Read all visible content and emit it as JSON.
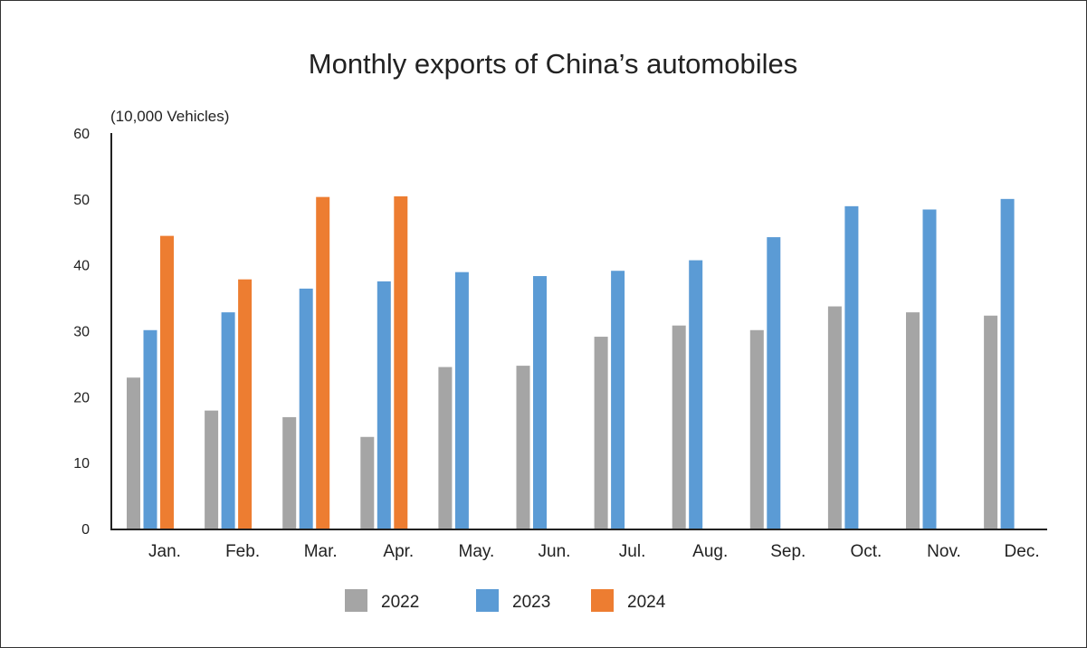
{
  "chart_data": {
    "type": "bar",
    "title": "Monthly exports of China’s automobiles",
    "ylabel": "(10,000 Vehicles)",
    "xlabel": "",
    "ylim": [
      0,
      60
    ],
    "yticks": [
      0,
      10,
      20,
      30,
      40,
      50,
      60
    ],
    "grid": false,
    "legend_placement": "bottom",
    "categories": [
      "Jan.",
      "Feb.",
      "Mar.",
      "Apr.",
      "May.",
      "Jun.",
      "Jul.",
      "Aug.",
      "Sep.",
      "Oct.",
      "Nov.",
      "Dec."
    ],
    "series": [
      {
        "name": "2022",
        "color": "#a5a5a5",
        "values": [
          22.9,
          17.9,
          16.9,
          13.9,
          24.5,
          24.7,
          29.1,
          30.8,
          30.1,
          33.7,
          32.8,
          32.3
        ]
      },
      {
        "name": "2023",
        "color": "#5b9bd5",
        "values": [
          30.1,
          32.8,
          36.4,
          37.5,
          38.9,
          38.3,
          39.1,
          40.7,
          44.2,
          48.9,
          48.4,
          50.0
        ]
      },
      {
        "name": "2024",
        "color": "#ed7d31",
        "values": [
          44.4,
          37.8,
          50.3,
          50.4,
          null,
          null,
          null,
          null,
          null,
          null,
          null,
          null
        ]
      }
    ]
  }
}
